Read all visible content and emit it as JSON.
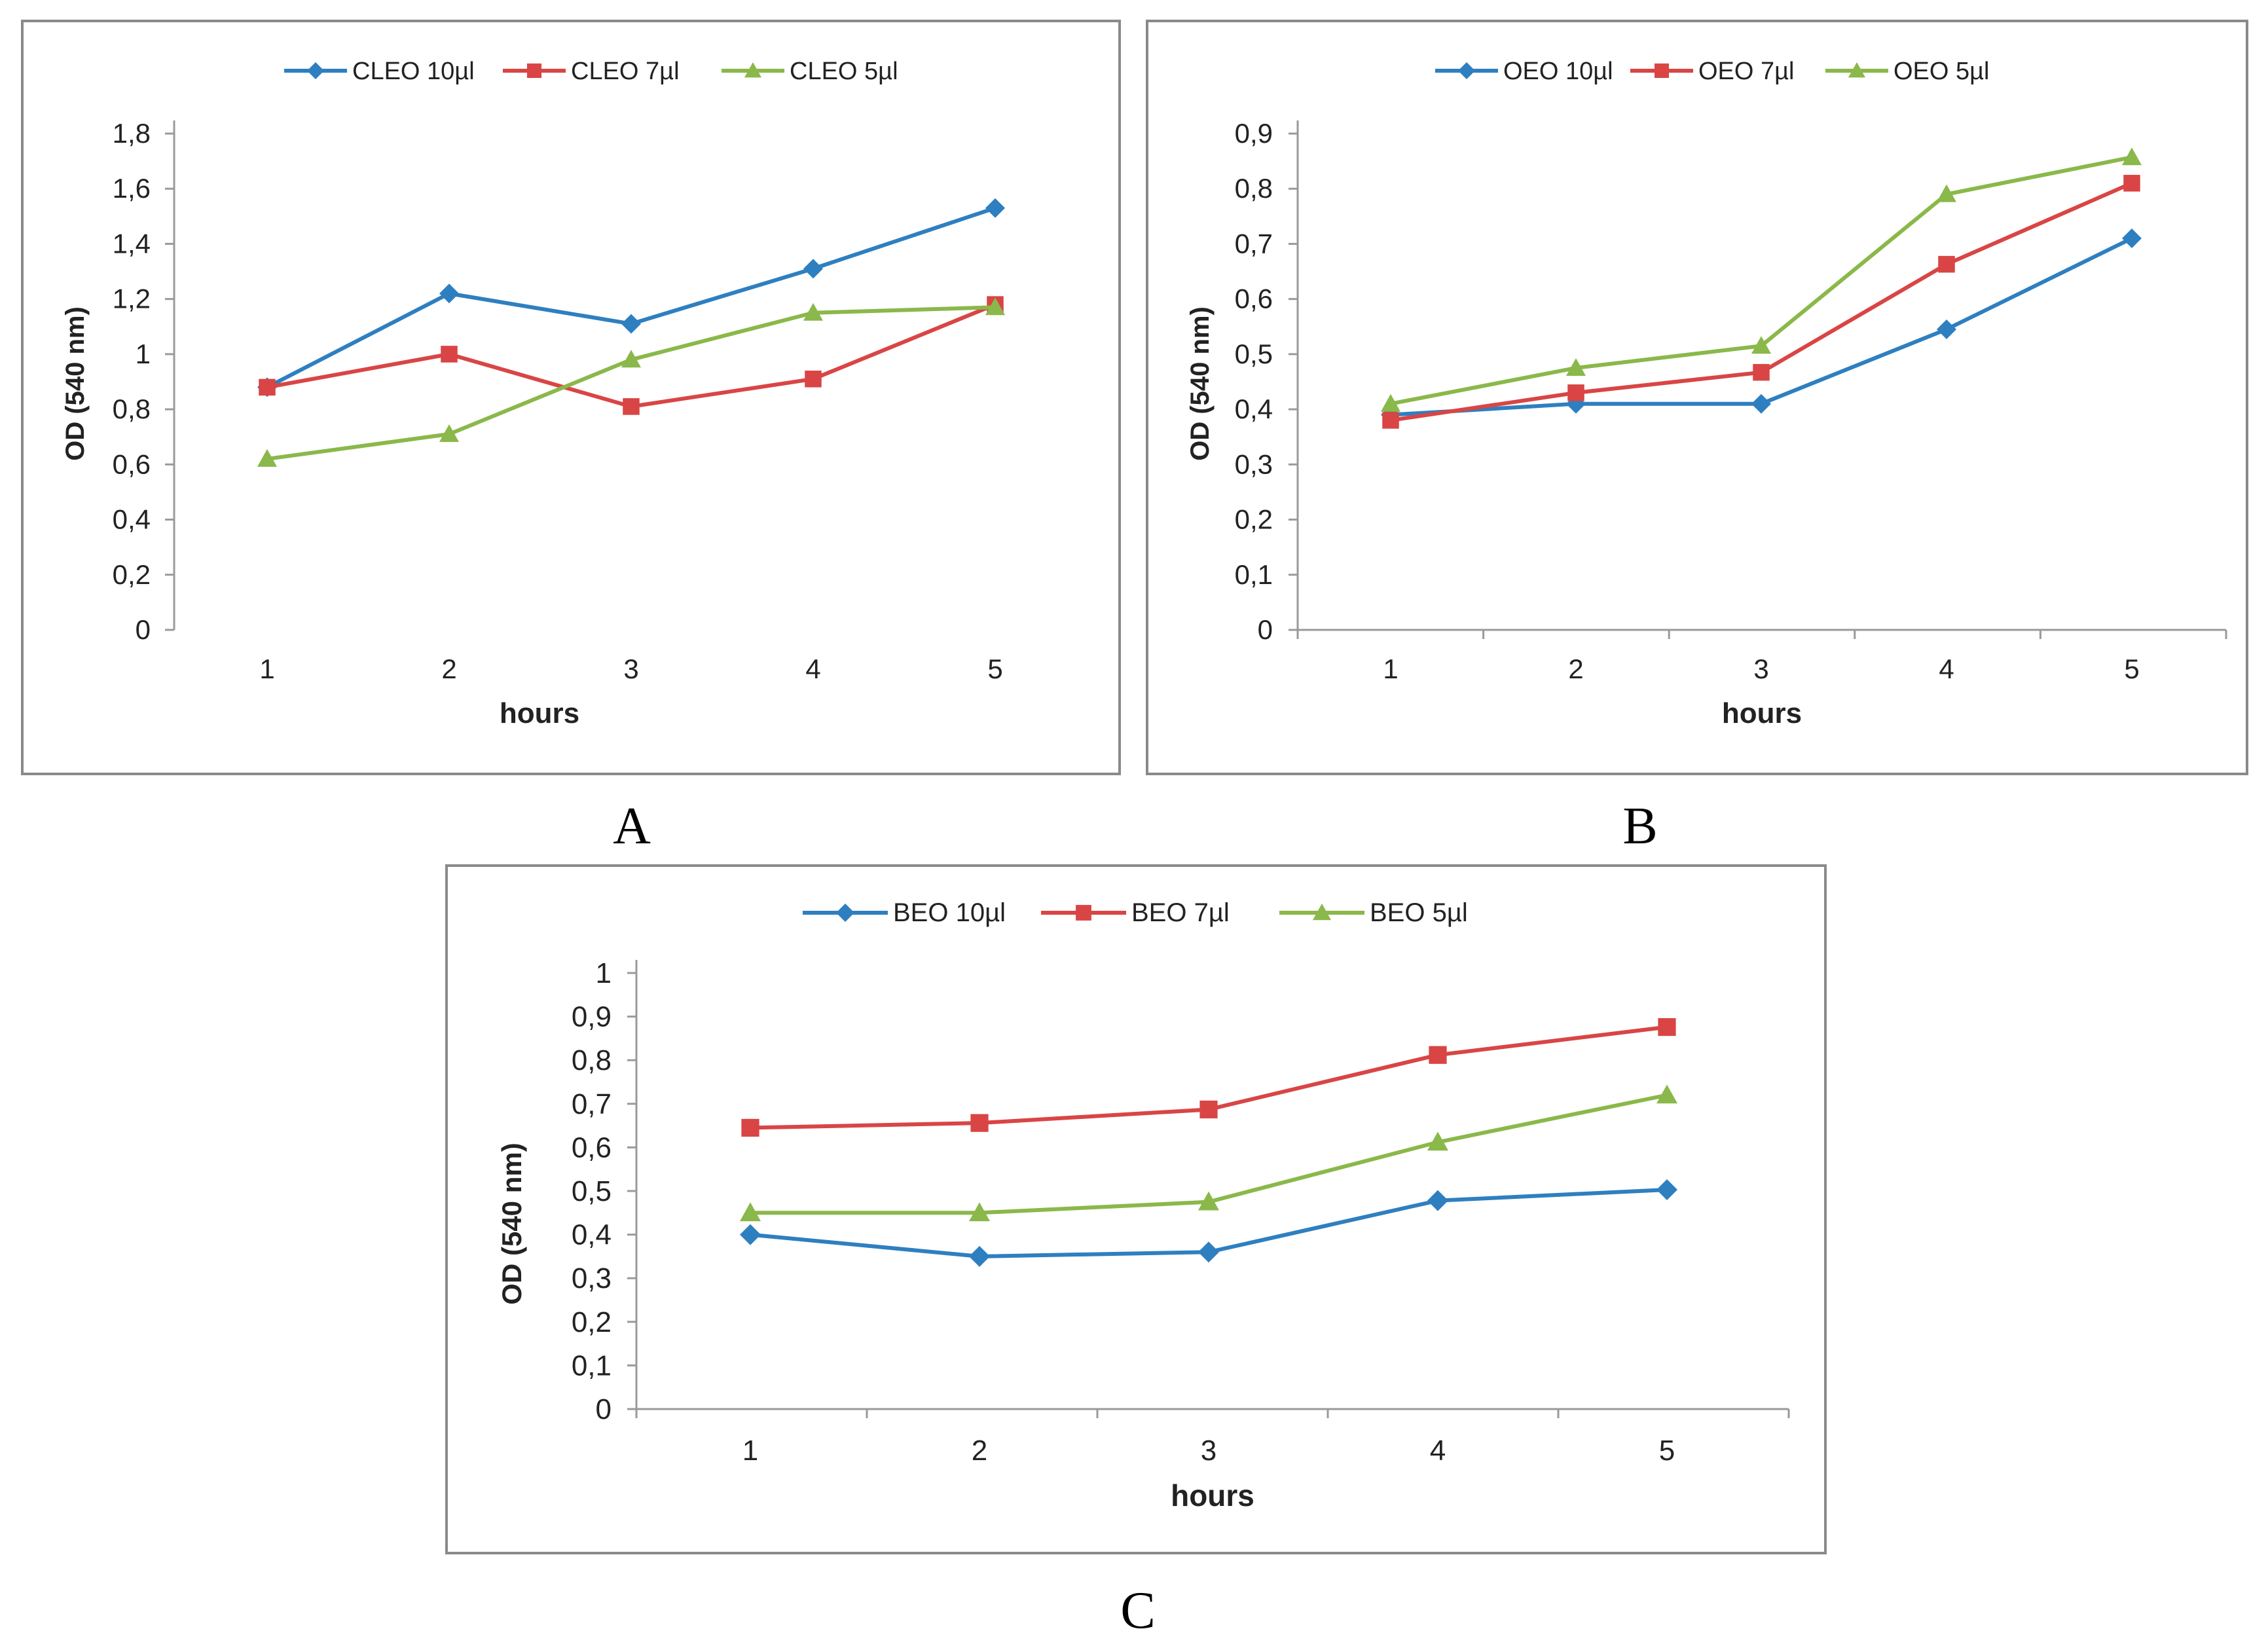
{
  "chart_data": [
    {
      "panel_label": "A",
      "type": "line",
      "xlabel": "hours",
      "ylabel": "OD (540 nm)",
      "categories": [
        "1",
        "2",
        "3",
        "4",
        "5"
      ],
      "y_ticks": [
        "0",
        "0,2",
        "0,4",
        "0,6",
        "0,8",
        "1",
        "1,2",
        "1,4",
        "1,6",
        "1,8"
      ],
      "ylim": [
        0,
        1.8
      ],
      "legend_position": "top",
      "x_axis_line": false,
      "series": [
        {
          "name": "CLEO 10µl",
          "color": "#2e7fc0",
          "marker": "diamond",
          "values": [
            0.88,
            1.22,
            1.11,
            1.31,
            1.53
          ]
        },
        {
          "name": "CLEO 7µl",
          "color": "#d94545",
          "marker": "square",
          "values": [
            0.88,
            1.0,
            0.81,
            0.91,
            1.18
          ]
        },
        {
          "name": "CLEO 5µl",
          "color": "#8ab84a",
          "marker": "triangle",
          "values": [
            0.62,
            0.71,
            0.98,
            1.15,
            1.17
          ]
        }
      ]
    },
    {
      "panel_label": "B",
      "type": "line",
      "xlabel": "hours",
      "ylabel": "OD (540 nm)",
      "categories": [
        "1",
        "2",
        "3",
        "4",
        "5"
      ],
      "y_ticks": [
        "0",
        "0,1",
        "0,2",
        "0,3",
        "0,4",
        "0,5",
        "0,6",
        "0,7",
        "0,8",
        "0,9"
      ],
      "ylim": [
        0,
        0.9
      ],
      "legend_position": "top",
      "x_axis_line": true,
      "series": [
        {
          "name": "OEO 10µl",
          "color": "#2e7fc0",
          "marker": "diamond",
          "values": [
            0.39,
            0.41,
            0.41,
            0.545,
            0.71
          ]
        },
        {
          "name": "OEO 7µl",
          "color": "#d94545",
          "marker": "square",
          "values": [
            0.38,
            0.43,
            0.467,
            0.663,
            0.81
          ]
        },
        {
          "name": "OEO 5µl",
          "color": "#8ab84a",
          "marker": "triangle",
          "values": [
            0.41,
            0.475,
            0.515,
            0.79,
            0.857
          ]
        }
      ]
    },
    {
      "panel_label": "C",
      "type": "line",
      "xlabel": "hours",
      "ylabel": "OD (540 nm)",
      "categories": [
        "1",
        "2",
        "3",
        "4",
        "5"
      ],
      "y_ticks": [
        "0",
        "0,1",
        "0,2",
        "0,3",
        "0,4",
        "0,5",
        "0,6",
        "0,7",
        "0,8",
        "0,9",
        "1"
      ],
      "ylim": [
        0,
        1.0
      ],
      "legend_position": "top",
      "x_axis_line": true,
      "series": [
        {
          "name": "BEO 10µl",
          "color": "#2e7fc0",
          "marker": "diamond",
          "values": [
            0.4,
            0.35,
            0.36,
            0.478,
            0.503
          ]
        },
        {
          "name": "BEO 7µl",
          "color": "#d94545",
          "marker": "square",
          "values": [
            0.645,
            0.656,
            0.687,
            0.812,
            0.876
          ]
        },
        {
          "name": "BEO 5µl",
          "color": "#8ab84a",
          "marker": "triangle",
          "values": [
            0.45,
            0.45,
            0.475,
            0.612,
            0.72
          ]
        }
      ]
    }
  ]
}
